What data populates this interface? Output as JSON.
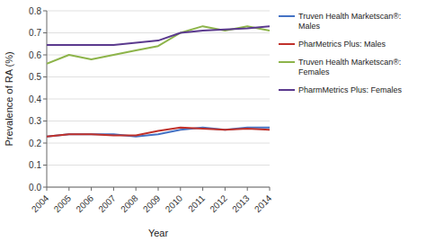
{
  "chart_data": {
    "type": "line",
    "xlabel": "Year",
    "ylabel": "Prevalence of RA (%)",
    "x": [
      2004,
      2005,
      2006,
      2007,
      2008,
      2009,
      2010,
      2011,
      2012,
      2013,
      2014
    ],
    "series": [
      {
        "name": "Truven Health Marketscan®:\nMales",
        "color": "#4472C4",
        "values": [
          0.23,
          0.24,
          0.24,
          0.24,
          0.23,
          0.24,
          0.26,
          0.27,
          0.26,
          0.27,
          0.27
        ]
      },
      {
        "name": "PharMetrics Plus: Males",
        "color": "#C0312B",
        "values": [
          0.23,
          0.24,
          0.24,
          0.235,
          0.235,
          0.255,
          0.27,
          0.265,
          0.26,
          0.265,
          0.26
        ]
      },
      {
        "name": "Truven Health Marketscan®:\nFemales",
        "color": "#8DB44A",
        "values": [
          0.56,
          0.6,
          0.58,
          0.6,
          0.62,
          0.64,
          0.7,
          0.73,
          0.71,
          0.73,
          0.71
        ]
      },
      {
        "name": "PharmMetrics Plus: Females",
        "color": "#5B3A8E",
        "values": [
          0.645,
          0.645,
          0.645,
          0.645,
          0.655,
          0.665,
          0.7,
          0.71,
          0.715,
          0.72,
          0.73
        ]
      }
    ],
    "xlim": [
      2004,
      2014
    ],
    "xticks": [
      2004,
      2005,
      2006,
      2007,
      2008,
      2009,
      2010,
      2011,
      2012,
      2013,
      2014
    ],
    "ylim": [
      0,
      0.8
    ],
    "yticks": [
      {
        "value": 0,
        "label": "0.0"
      },
      0.1,
      0.2,
      0.3,
      0.4,
      0.5,
      0.6,
      0.7,
      0.8
    ],
    "grid": true,
    "legend": "right"
  }
}
